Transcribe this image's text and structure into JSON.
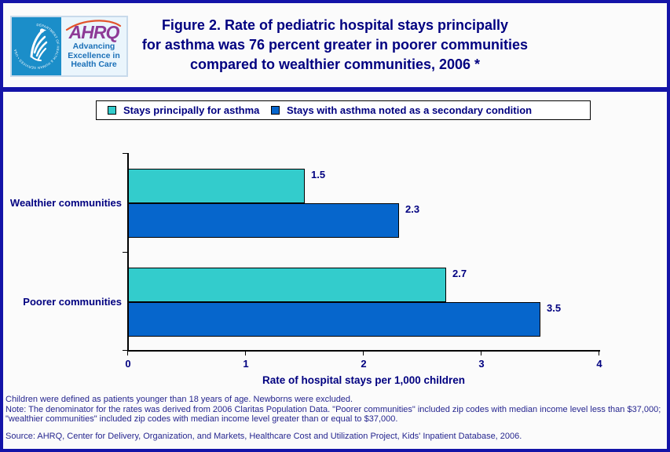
{
  "header": {
    "logo": {
      "seal_text": "DEPARTMENT OF HEALTH & HUMAN SERVICES • USA",
      "acronym": "AHRQ",
      "tagline_lines": [
        "Advancing",
        "Excellence in",
        "Health Care"
      ]
    },
    "title_lines": [
      "Figure 2. Rate of pediatric hospital stays principally",
      "for asthma was 76 percent greater in poorer communities",
      "compared to wealthier communities, 2006 *"
    ]
  },
  "chart_data": {
    "type": "bar",
    "orientation": "horizontal",
    "categories": [
      "Wealthier communities",
      "Poorer communities"
    ],
    "series": [
      {
        "name": "Stays principally for asthma",
        "color": "#33cccc",
        "values": [
          1.5,
          2.7
        ]
      },
      {
        "name": "Stays with asthma noted as a secondary condition",
        "color": "#0666cc",
        "values": [
          2.3,
          3.5
        ]
      }
    ],
    "data_labels": [
      "1.5",
      "2.3",
      "2.7",
      "3.5"
    ],
    "xlabel": "Rate of hospital stays per 1,000 children",
    "xlim": [
      0,
      4
    ],
    "xticks": [
      0,
      1,
      2,
      3,
      4
    ],
    "grid": false,
    "legend_position": "top"
  },
  "footer": {
    "note1": "Children were defined as patients younger than 18 years of age. Newborns were excluded.",
    "note2": "Note: The denominator for the rates was derived from 2006 Claritas Population Data. \"Poorer communities\" included zip codes with median income level less than $37,000; \"wealthier communities\" included zip codes with median income level greater than or equal to $37,000.",
    "source": "Source: AHRQ, Center for Delivery, Organization, and Markets, Healthcare Cost and Utilization Project, Kids' Inpatient Database, 2006."
  },
  "colors": {
    "navy_text": "#000080",
    "footer_text": "#26268f",
    "frame": "#1414a8",
    "axis": "#000000",
    "legend_border": "#000000",
    "logo_blue": "#1b8ec9",
    "logo_purple": "#8d3a96",
    "tagline_blue": "#1a70b8",
    "arc_orange": "#e2532b"
  }
}
